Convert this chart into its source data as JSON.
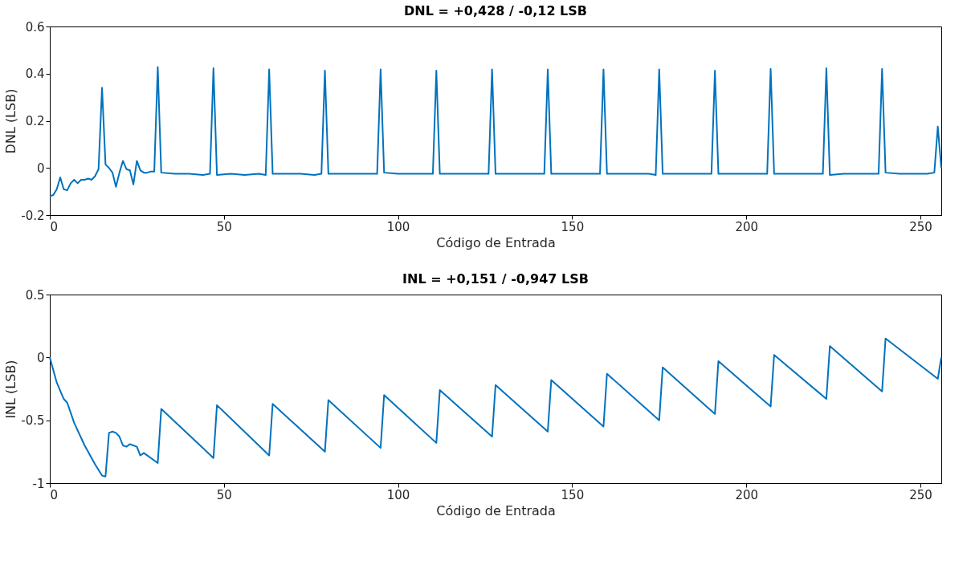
{
  "chart_data": [
    {
      "type": "line",
      "title": "DNL = +0,428 / -0,12 LSB",
      "xlabel": "Código de Entrada",
      "ylabel": "DNL (LSB)",
      "xlim": [
        0,
        256
      ],
      "ylim": [
        -0.2,
        0.6
      ],
      "xticks": [
        0,
        50,
        100,
        150,
        200,
        250
      ],
      "yticks": [
        -0.2,
        0,
        0.2,
        0.4,
        0.6
      ],
      "marker": "none",
      "line_style": "solid",
      "series": [
        {
          "color": "#0072bd",
          "x": [
            0,
            1,
            2,
            3,
            4,
            5,
            6,
            7,
            8,
            9,
            10,
            11,
            12,
            13,
            14,
            15,
            16,
            17,
            18,
            19,
            20,
            21,
            22,
            23,
            24,
            25,
            26,
            27,
            28,
            29,
            30,
            31,
            32,
            36,
            40,
            44,
            46,
            47,
            48,
            52,
            56,
            60,
            62,
            63,
            64,
            68,
            72,
            76,
            78,
            79,
            80,
            84,
            88,
            92,
            94,
            95,
            96,
            100,
            104,
            108,
            110,
            111,
            112,
            116,
            120,
            124,
            126,
            127,
            128,
            132,
            136,
            140,
            142,
            143,
            144,
            148,
            152,
            156,
            158,
            159,
            160,
            164,
            168,
            172,
            174,
            175,
            176,
            180,
            184,
            188,
            190,
            191,
            192,
            196,
            200,
            204,
            206,
            207,
            208,
            212,
            216,
            220,
            222,
            223,
            224,
            228,
            232,
            236,
            238,
            239,
            240,
            244,
            248,
            252,
            254,
            255,
            256
          ],
          "values": [
            -0.12,
            -0.115,
            -0.09,
            -0.04,
            -0.09,
            -0.095,
            -0.065,
            -0.05,
            -0.065,
            -0.05,
            -0.05,
            -0.045,
            -0.05,
            -0.035,
            -0.005,
            0.34,
            0.015,
            0.0,
            -0.02,
            -0.08,
            -0.02,
            0.03,
            -0.005,
            -0.01,
            -0.07,
            0.03,
            -0.01,
            -0.02,
            -0.02,
            -0.015,
            -0.015,
            0.428,
            -0.02,
            -0.025,
            -0.025,
            -0.03,
            -0.025,
            0.423,
            -0.03,
            -0.025,
            -0.03,
            -0.025,
            -0.03,
            0.418,
            -0.025,
            -0.025,
            -0.025,
            -0.03,
            -0.025,
            0.413,
            -0.025,
            -0.025,
            -0.025,
            -0.025,
            -0.025,
            0.418,
            -0.02,
            -0.025,
            -0.025,
            -0.025,
            -0.025,
            0.413,
            -0.025,
            -0.025,
            -0.025,
            -0.025,
            -0.025,
            0.418,
            -0.025,
            -0.025,
            -0.025,
            -0.025,
            -0.025,
            0.418,
            -0.025,
            -0.025,
            -0.025,
            -0.025,
            -0.025,
            0.418,
            -0.025,
            -0.025,
            -0.025,
            -0.025,
            -0.03,
            0.418,
            -0.025,
            -0.025,
            -0.025,
            -0.025,
            -0.025,
            0.413,
            -0.025,
            -0.025,
            -0.025,
            -0.025,
            -0.025,
            0.42,
            -0.025,
            -0.025,
            -0.025,
            -0.025,
            -0.025,
            0.423,
            -0.03,
            -0.025,
            -0.025,
            -0.025,
            -0.025,
            0.42,
            -0.02,
            -0.025,
            -0.025,
            -0.025,
            -0.02,
            0.175,
            0.0
          ]
        }
      ]
    },
    {
      "type": "line",
      "title": "INL = +0,151 / -0,947 LSB",
      "xlabel": "Código de Entrada",
      "ylabel": "INL (LSB)",
      "xlim": [
        0,
        256
      ],
      "ylim": [
        -1,
        0.5
      ],
      "xticks": [
        0,
        50,
        100,
        150,
        200,
        250
      ],
      "yticks": [
        -1,
        -0.5,
        0,
        0.5
      ],
      "marker": "none",
      "line_style": "solid",
      "series": [
        {
          "color": "#0072bd",
          "x": [
            0,
            2,
            4,
            5,
            7,
            10,
            13,
            15,
            16,
            17,
            18,
            19,
            20,
            21,
            22,
            23,
            24,
            25,
            26,
            27,
            30,
            31,
            32,
            47,
            48,
            63,
            64,
            79,
            80,
            95,
            96,
            111,
            112,
            127,
            128,
            143,
            144,
            159,
            160,
            175,
            176,
            191,
            192,
            207,
            208,
            223,
            224,
            239,
            240,
            255,
            256
          ],
          "values": [
            0,
            -0.2,
            -0.33,
            -0.36,
            -0.52,
            -0.7,
            -0.85,
            -0.94,
            -0.947,
            -0.6,
            -0.59,
            -0.6,
            -0.63,
            -0.7,
            -0.71,
            -0.69,
            -0.7,
            -0.71,
            -0.78,
            -0.76,
            -0.82,
            -0.84,
            -0.41,
            -0.8,
            -0.38,
            -0.78,
            -0.37,
            -0.75,
            -0.34,
            -0.72,
            -0.3,
            -0.68,
            -0.26,
            -0.63,
            -0.22,
            -0.59,
            -0.18,
            -0.55,
            -0.13,
            -0.5,
            -0.08,
            -0.45,
            -0.03,
            -0.39,
            0.02,
            -0.33,
            0.09,
            -0.27,
            0.151,
            -0.17,
            0
          ]
        }
      ]
    }
  ]
}
